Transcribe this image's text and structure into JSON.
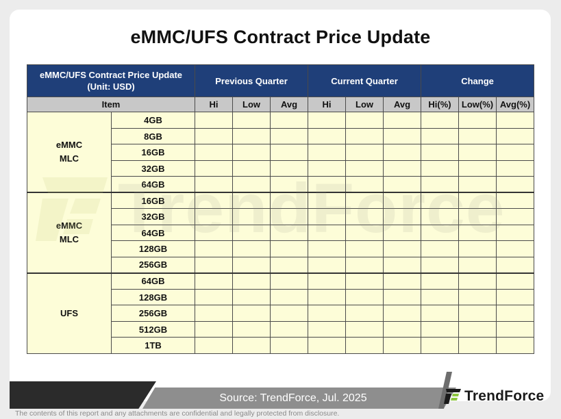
{
  "title": "eMMC/UFS Contract Price Update",
  "table": {
    "corner": [
      "eMMC/UFS Contract Price Update",
      "(Unit: USD)"
    ],
    "groups": [
      "Previous Quarter",
      "Current Quarter",
      "Change"
    ],
    "item_header": "Item",
    "sub_headers": [
      "Hi",
      "Low",
      "Avg",
      "Hi",
      "Low",
      "Avg",
      "Hi(%)",
      "Low(%)",
      "Avg(%)"
    ],
    "sections": [
      {
        "name": [
          "eMMC",
          "MLC"
        ],
        "sizes": [
          "4GB",
          "8GB",
          "16GB",
          "32GB",
          "64GB"
        ]
      },
      {
        "name": [
          "eMMC",
          "MLC"
        ],
        "sizes": [
          "16GB",
          "32GB",
          "64GB",
          "128GB",
          "256GB"
        ]
      },
      {
        "name": [
          "UFS"
        ],
        "sizes": [
          "64GB",
          "128GB",
          "256GB",
          "512GB",
          "1TB"
        ]
      }
    ]
  },
  "watermark": "TrendForce",
  "footer": {
    "source": "Source: TrendForce, Jul. 2025",
    "logo_text": "TrendForce",
    "disclaimer": "The contents of this report and any attachments are confidential and legally protected from disclosure."
  },
  "colors": {
    "header_blue": "#1f3f79",
    "subheader_grey": "#c8c8c8",
    "cell_yellow": "#fdfdd8"
  }
}
